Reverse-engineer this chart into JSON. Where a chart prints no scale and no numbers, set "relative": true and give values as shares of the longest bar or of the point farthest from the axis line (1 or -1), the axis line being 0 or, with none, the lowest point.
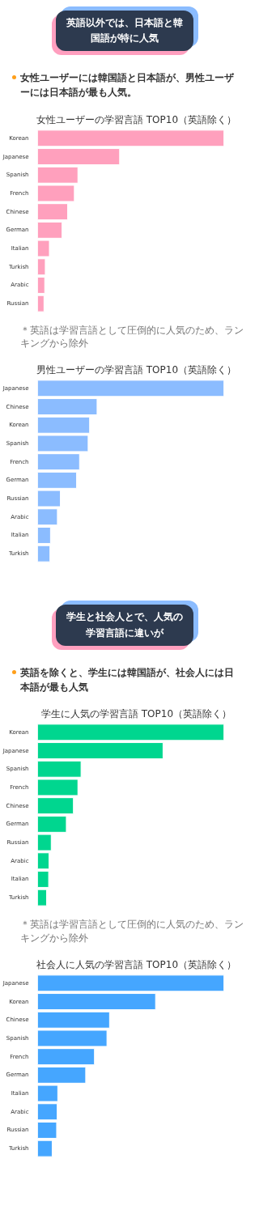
{
  "chart_data": [
    {
      "type": "bar",
      "orientation": "horizontal",
      "relative": true,
      "title": "女性ユーザーの学習言語 TOP10（英語除く）",
      "annotations": [
        "英語以外では、日本語と韓国語が特に人気",
        "女性ユーザーには韓国語と日本語が、男性ユーザーには日本語が最も人気。",
        "＊英語は学習言語として圧倒的に人気のため、ランキングから除外"
      ],
      "categories": [
        "Korean",
        "Japanese",
        "Spanish",
        "French",
        "Chinese",
        "German",
        "Italian",
        "Turkish",
        "Arabic",
        "Russian"
      ],
      "values": [
        1,
        0.44,
        0.216,
        0.197,
        0.161,
        0.131,
        0.063,
        0.041,
        0.038,
        0.034
      ],
      "color": "#ffa0bd"
    },
    {
      "type": "bar",
      "orientation": "horizontal",
      "relative": true,
      "title": "男性ユーザーの学習言語 TOP10（英語除く）",
      "categories": [
        "Japanese",
        "Chinese",
        "Korean",
        "Spanish",
        "French",
        "German",
        "Russian",
        "Arabic",
        "Italian",
        "Turkish"
      ],
      "values": [
        1,
        0.319,
        0.279,
        0.271,
        0.225,
        0.209,
        0.122,
        0.106,
        0.069,
        0.066
      ],
      "color": "#8bbcff"
    },
    {
      "type": "bar",
      "orientation": "horizontal",
      "relative": true,
      "title": "学生に人気の学習言語 TOP10（英語除く）",
      "annotations": [
        "学生と社会人とで、人気の学習言語に違いが",
        "英語を除くと、学生には韓国語が、社会人には日本語が最も人気",
        "＊英語は学習言語として圧倒的に人気のため、ランキングから除外"
      ],
      "categories": [
        "Korean",
        "Japanese",
        "Spanish",
        "French",
        "Chinese",
        "German",
        "Russian",
        "Arabic",
        "Italian",
        "Turkish"
      ],
      "values": [
        1,
        0.673,
        0.233,
        0.216,
        0.192,
        0.154,
        0.073,
        0.061,
        0.059,
        0.048
      ],
      "color": "#00d68f"
    },
    {
      "type": "bar",
      "orientation": "horizontal",
      "relative": true,
      "title": "社会人に人気の学習言語 TOP10（英語除く）",
      "categories": [
        "Japanese",
        "Korean",
        "Chinese",
        "Spanish",
        "French",
        "German",
        "Italian",
        "Arabic",
        "Russian",
        "Turkish"
      ],
      "values": [
        1,
        0.633,
        0.386,
        0.372,
        0.305,
        0.258,
        0.108,
        0.105,
        0.102,
        0.078
      ],
      "color": "#45a6ff"
    }
  ]
}
